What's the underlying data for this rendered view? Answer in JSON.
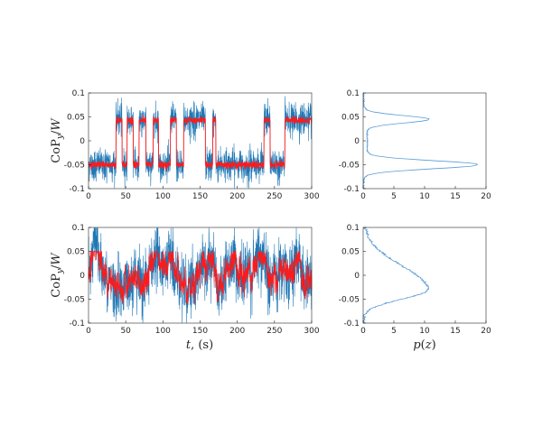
{
  "figure": {
    "ylabel": "CoP_y/W",
    "xlabel_time": "t, (s)",
    "xlabel_pdf": "p(z)"
  },
  "colors": {
    "signal": "#1f77b4",
    "filtered": "#ff1a1a",
    "pdf": "#5b9bd5",
    "axis": "#262626"
  },
  "chart_data": [
    {
      "type": "line",
      "panel": "top-time-series",
      "xlabel": "",
      "ylabel": "CoP_y/W",
      "xlim": [
        0,
        300
      ],
      "ylim": [
        -0.1,
        0.1
      ],
      "xticks": [
        0,
        50,
        100,
        150,
        200,
        250,
        300
      ],
      "yticks": [
        -0.1,
        -0.05,
        0,
        0.05,
        0.1
      ],
      "series": [
        {
          "values_description": "noisy signal switching between about -0.05 and 0.045"
        },
        {
          "switch_intervals_high": [
            [
              37,
              45
            ],
            [
              52,
              60
            ],
            [
              68,
              77
            ],
            [
              87,
              94
            ],
            [
              110,
              118
            ],
            [
              128,
              157
            ],
            [
              167,
              171
            ],
            [
              236,
              244
            ],
            [
              264,
              300
            ]
          ],
          "high_level": 0.043,
          "low_level": -0.05
        }
      ]
    },
    {
      "type": "line",
      "panel": "top-pdf",
      "xlim": [
        0,
        20
      ],
      "ylim": [
        -0.1,
        0.1
      ],
      "xticks": [
        0,
        5,
        10,
        15,
        20
      ],
      "yticks": [
        -0.1,
        -0.05,
        0,
        0.05,
        0.1
      ],
      "peaks": [
        {
          "z": 0.045,
          "p": 11
        },
        {
          "z": -0.05,
          "p": 19
        }
      ],
      "trough": {
        "z": 0.0,
        "p": 0.7
      }
    },
    {
      "type": "line",
      "panel": "bottom-time-series",
      "xlabel": "t, (s)",
      "ylabel": "CoP_y/W",
      "xlim": [
        0,
        300
      ],
      "ylim": [
        -0.1,
        0.1
      ],
      "xticks": [
        0,
        50,
        100,
        150,
        200,
        250,
        300
      ],
      "yticks": [
        -0.1,
        -0.05,
        0,
        0.05,
        0.1
      ]
    },
    {
      "type": "line",
      "panel": "bottom-pdf",
      "xlabel": "p(z)",
      "xlim": [
        0,
        20
      ],
      "ylim": [
        -0.1,
        0.1
      ],
      "xticks": [
        0,
        5,
        10,
        15,
        20
      ],
      "yticks": [
        -0.1,
        -0.05,
        0,
        0.05,
        0.1
      ],
      "peak": {
        "z": -0.03,
        "p": 10.5
      }
    }
  ]
}
